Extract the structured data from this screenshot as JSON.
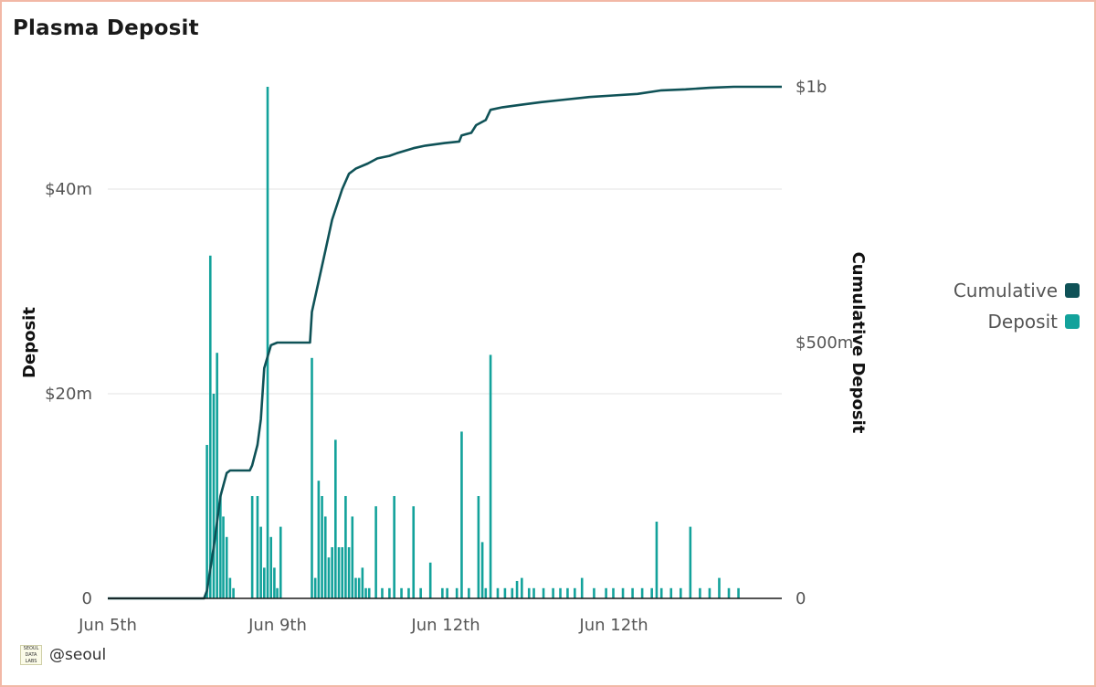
{
  "title": "Plasma Deposit",
  "legend": [
    {
      "name": "Cumulative",
      "color": "#0f5257"
    },
    {
      "name": "Deposit",
      "color": "#13a29b"
    }
  ],
  "footer": {
    "handle": "@seoul",
    "logo_text": "SEOUL DATA LABS"
  },
  "chart_data": {
    "type": "bar+line",
    "x_ticks": [
      "Jun 5th",
      "Jun 9th",
      "Jun 12th",
      "Jun 12th"
    ],
    "left_axis": {
      "label": "Deposit",
      "ticks": [
        "0",
        "$20m",
        "$40m"
      ],
      "values": [
        0,
        20,
        40
      ],
      "max": 50
    },
    "right_axis": {
      "label": "Cumulative Deposit",
      "ticks": [
        "0",
        "$500m",
        "$1b"
      ],
      "values": [
        0,
        500,
        1000
      ],
      "max": 1000
    },
    "grid": true,
    "legend_position": "right",
    "series": [
      {
        "name": "Deposit",
        "kind": "bar",
        "unit": "$m",
        "points": [
          [
            60.6,
            15
          ],
          [
            61.3,
            33.5
          ],
          [
            62.0,
            20
          ],
          [
            62.7,
            24
          ],
          [
            63.4,
            10
          ],
          [
            64.0,
            8
          ],
          [
            64.7,
            6
          ],
          [
            65.4,
            2
          ],
          [
            66.1,
            1
          ],
          [
            70.0,
            10
          ],
          [
            71.1,
            10
          ],
          [
            71.8,
            7
          ],
          [
            72.5,
            3
          ],
          [
            73.2,
            50
          ],
          [
            73.9,
            6
          ],
          [
            74.6,
            3
          ],
          [
            75.2,
            1
          ],
          [
            75.9,
            7
          ],
          [
            82.4,
            23.5
          ],
          [
            83.1,
            2
          ],
          [
            83.8,
            11.5
          ],
          [
            84.5,
            10
          ],
          [
            85.2,
            8
          ],
          [
            85.9,
            4
          ],
          [
            86.6,
            5
          ],
          [
            87.3,
            15.5
          ],
          [
            88.0,
            5
          ],
          [
            88.7,
            5
          ],
          [
            89.4,
            10
          ],
          [
            90.1,
            5
          ],
          [
            90.8,
            8
          ],
          [
            91.5,
            2
          ],
          [
            92.2,
            2
          ],
          [
            92.9,
            3
          ],
          [
            93.6,
            1
          ],
          [
            94.3,
            1
          ],
          [
            95.7,
            9
          ],
          [
            97.0,
            1
          ],
          [
            98.5,
            1
          ],
          [
            99.5,
            10
          ],
          [
            101.0,
            1
          ],
          [
            102.5,
            1
          ],
          [
            103.5,
            9
          ],
          [
            105.0,
            1
          ],
          [
            107.0,
            3.5
          ],
          [
            109.5,
            1
          ],
          [
            110.5,
            1
          ],
          [
            112.5,
            1
          ],
          [
            113.5,
            16.3
          ],
          [
            115.0,
            1
          ],
          [
            117.0,
            10
          ],
          [
            117.8,
            5.5
          ],
          [
            118.5,
            1
          ],
          [
            119.5,
            23.8
          ],
          [
            121.0,
            1
          ],
          [
            122.5,
            1
          ],
          [
            124.0,
            1
          ],
          [
            125.0,
            1.7
          ],
          [
            126.0,
            2
          ],
          [
            127.5,
            1
          ],
          [
            128.5,
            1
          ],
          [
            130.5,
            1
          ],
          [
            132.5,
            1
          ],
          [
            134.0,
            1
          ],
          [
            135.5,
            1
          ],
          [
            137.0,
            1
          ],
          [
            138.5,
            2
          ],
          [
            141.0,
            1
          ],
          [
            143.5,
            1
          ],
          [
            145.0,
            1
          ],
          [
            147.0,
            1
          ],
          [
            149.0,
            1
          ],
          [
            151.0,
            1
          ],
          [
            153.0,
            1
          ],
          [
            154.0,
            7.5
          ],
          [
            155.0,
            1
          ],
          [
            157.0,
            1
          ],
          [
            159.0,
            1
          ],
          [
            161.0,
            7
          ],
          [
            163.0,
            1
          ],
          [
            165.0,
            1
          ],
          [
            167.0,
            2
          ],
          [
            169.0,
            1
          ],
          [
            171.0,
            1
          ]
        ]
      },
      {
        "name": "Cumulative",
        "kind": "line",
        "unit": "$m",
        "points": [
          [
            40,
            0
          ],
          [
            60,
            0
          ],
          [
            60.6,
            15
          ],
          [
            62.0,
            100
          ],
          [
            63.4,
            200
          ],
          [
            64.7,
            245
          ],
          [
            65.4,
            250
          ],
          [
            68.0,
            250
          ],
          [
            69.5,
            250
          ],
          [
            70.0,
            260
          ],
          [
            71.1,
            300
          ],
          [
            71.8,
            350
          ],
          [
            72.5,
            450
          ],
          [
            73.9,
            495
          ],
          [
            75.2,
            500
          ],
          [
            80.0,
            500
          ],
          [
            82.0,
            500
          ],
          [
            82.4,
            560
          ],
          [
            83.8,
            620
          ],
          [
            85.2,
            680
          ],
          [
            86.6,
            740
          ],
          [
            87.3,
            760
          ],
          [
            88.7,
            800
          ],
          [
            90.1,
            830
          ],
          [
            91.5,
            840
          ],
          [
            94.0,
            850
          ],
          [
            96.0,
            860
          ],
          [
            98.5,
            865
          ],
          [
            100.0,
            870
          ],
          [
            103.5,
            880
          ],
          [
            106.0,
            885
          ],
          [
            110.0,
            890
          ],
          [
            113.0,
            893
          ],
          [
            113.5,
            905
          ],
          [
            115.5,
            910
          ],
          [
            116.5,
            925
          ],
          [
            118.5,
            935
          ],
          [
            119.5,
            955
          ],
          [
            122.0,
            960
          ],
          [
            126.0,
            965
          ],
          [
            130.0,
            970
          ],
          [
            135.0,
            975
          ],
          [
            140.0,
            980
          ],
          [
            145.0,
            983
          ],
          [
            150.0,
            986
          ],
          [
            155.0,
            993
          ],
          [
            160.0,
            995
          ],
          [
            165.0,
            998
          ],
          [
            170.0,
            1000
          ],
          [
            180.0,
            1000
          ]
        ]
      }
    ]
  }
}
